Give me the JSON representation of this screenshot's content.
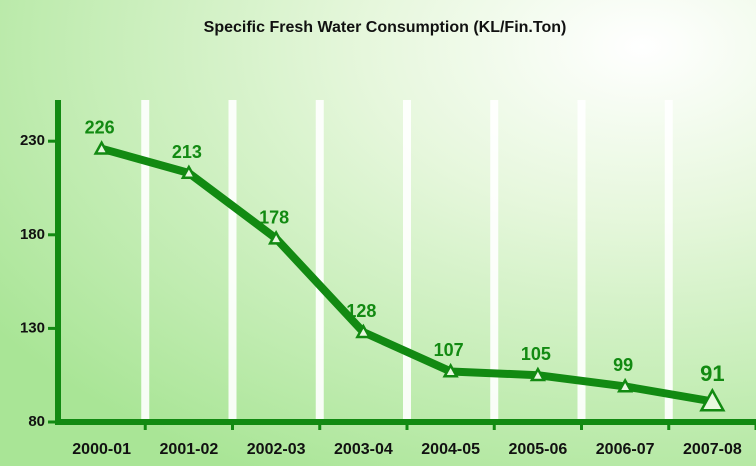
{
  "chart_data": {
    "type": "line",
    "title": "Specific Fresh Water Consumption (KL/Fin.Ton)",
    "categories": [
      "2000-01",
      "2001-02",
      "2002-03",
      "2003-04",
      "2004-05",
      "2005-06",
      "2006-07",
      "2007-08"
    ],
    "values": [
      226,
      213,
      178,
      128,
      107,
      105,
      99,
      91
    ],
    "color": "#128a12",
    "ylim": [
      80,
      252
    ],
    "yticks": [
      80,
      130,
      180,
      230
    ]
  }
}
